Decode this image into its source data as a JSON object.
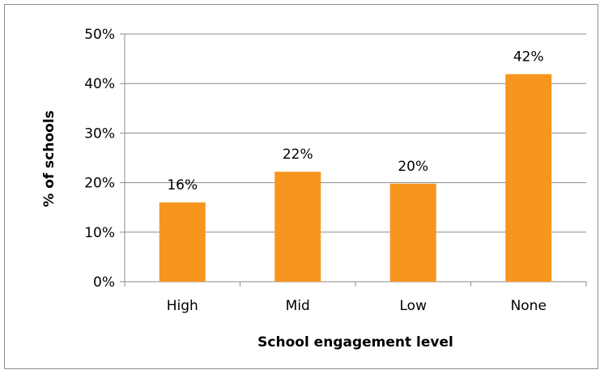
{
  "chart_data": {
    "type": "bar",
    "title": "",
    "xlabel": "School engagement level",
    "ylabel": "% of schools",
    "categories": [
      "High",
      "Mid",
      "Low",
      "None"
    ],
    "values": [
      16,
      22.2,
      19.8,
      41.9
    ],
    "data_labels": [
      "16%",
      "22%",
      "20%",
      "42%"
    ],
    "ylim": [
      0,
      50
    ],
    "yticks": [
      0,
      10,
      20,
      30,
      40,
      50
    ],
    "ytick_labels": [
      "0%",
      "10%",
      "20%",
      "30%",
      "40%",
      "50%"
    ],
    "grid": true,
    "legend": "none",
    "colors": {
      "bar": "#F7961E",
      "grid": "#8c8c8c",
      "axis": "#8c8c8c",
      "frame": "#8c8c8c"
    }
  }
}
